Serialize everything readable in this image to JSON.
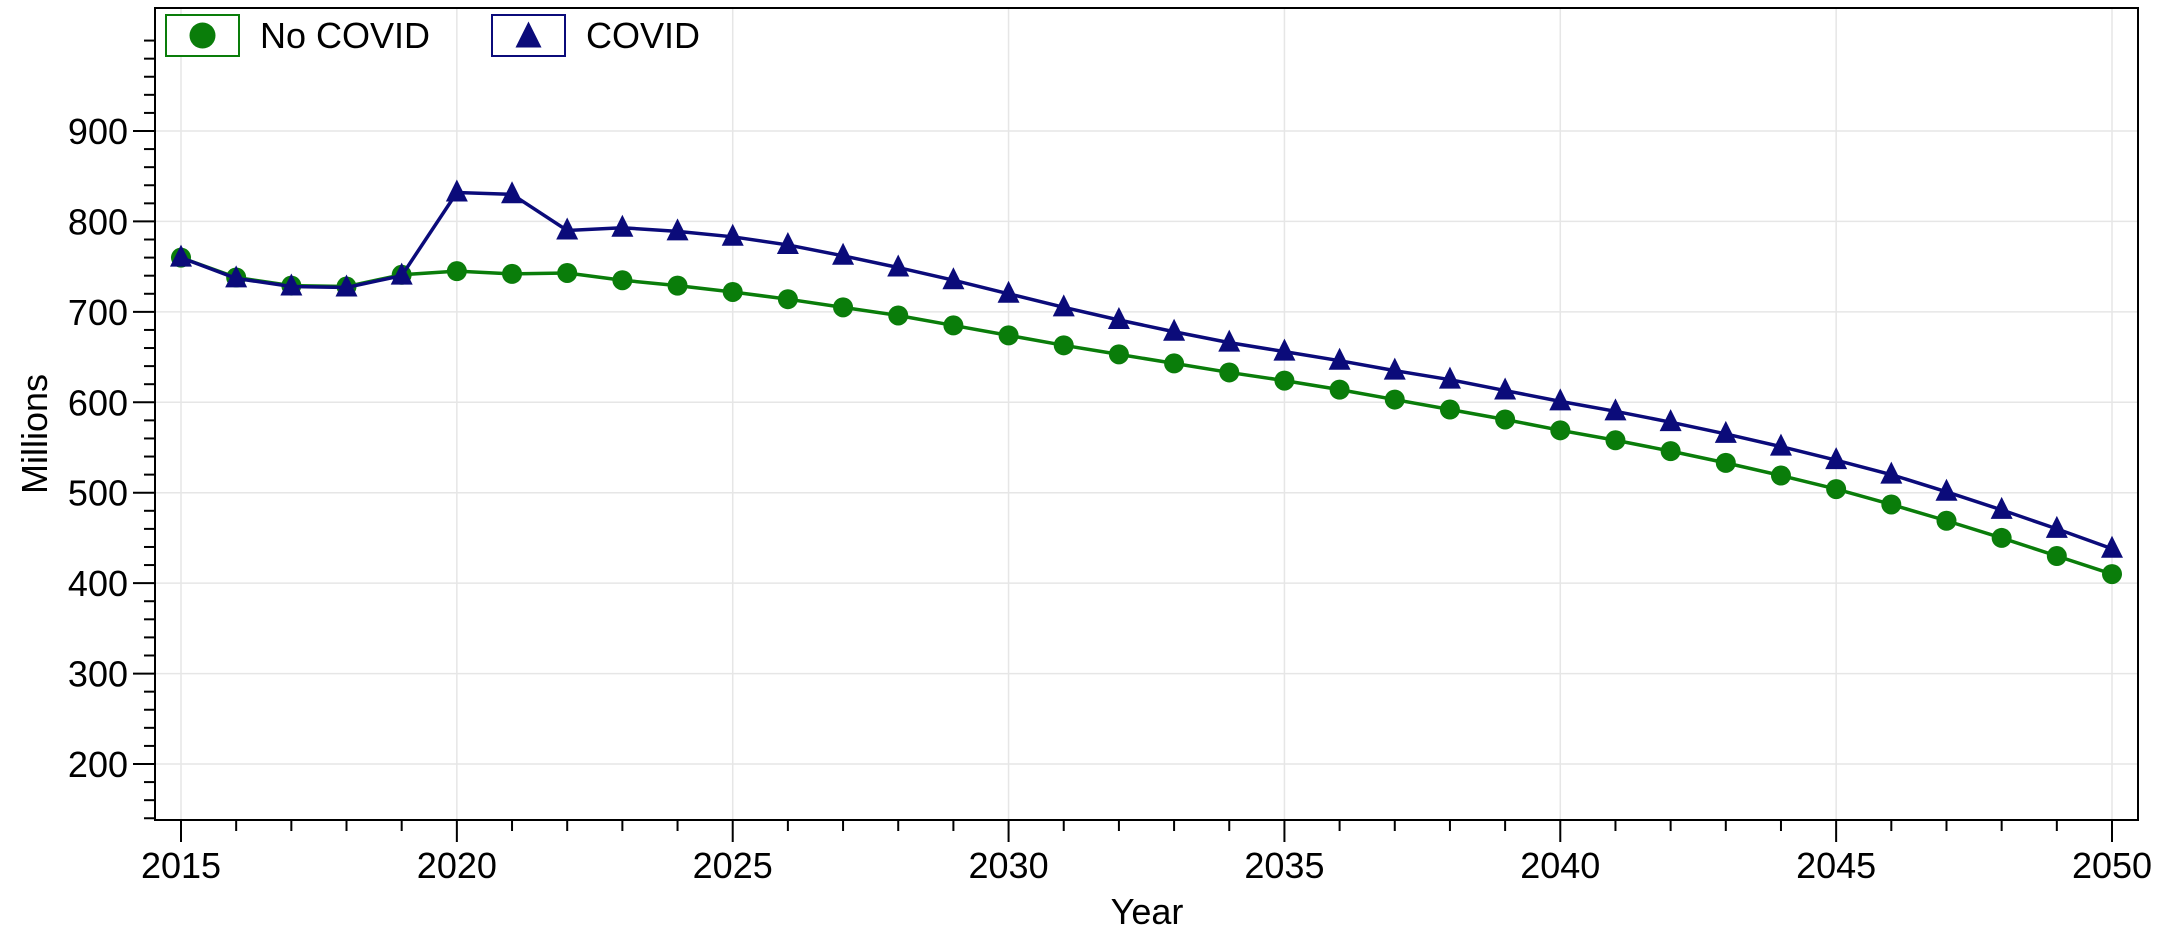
{
  "chart_data": {
    "type": "line",
    "title": "",
    "xlabel": "Year",
    "ylabel": "Millions",
    "xlim": [
      2014.5,
      2050.5
    ],
    "ylim": [
      135,
      1000
    ],
    "xticks": [
      2015,
      2020,
      2025,
      2030,
      2035,
      2040,
      2045,
      2050
    ],
    "yticks": [
      200,
      300,
      400,
      500,
      600,
      700,
      800,
      900
    ],
    "grid": true,
    "legend": "top-left",
    "x": [
      2015,
      2016,
      2017,
      2018,
      2019,
      2020,
      2021,
      2022,
      2023,
      2024,
      2025,
      2026,
      2027,
      2028,
      2029,
      2030,
      2031,
      2032,
      2033,
      2034,
      2035,
      2036,
      2037,
      2038,
      2039,
      2040,
      2041,
      2042,
      2043,
      2044,
      2045,
      2046,
      2047,
      2048,
      2049,
      2050
    ],
    "series": [
      {
        "name": "No COVID",
        "color": "#0a7d0a",
        "marker": "circle",
        "values": [
          760,
          738,
          729,
          728,
          741,
          745,
          742,
          743,
          735,
          729,
          722,
          714,
          705,
          696,
          685,
          674,
          663,
          653,
          643,
          633,
          624,
          614,
          603,
          592,
          581,
          569,
          558,
          546,
          533,
          519,
          504,
          487,
          469,
          450,
          430,
          410
        ]
      },
      {
        "name": "COVID",
        "color": "#0b0b7a",
        "marker": "triangle",
        "values": [
          760,
          737,
          728,
          727,
          740,
          832,
          830,
          790,
          793,
          789,
          783,
          774,
          762,
          749,
          735,
          720,
          705,
          691,
          678,
          666,
          656,
          646,
          635,
          625,
          613,
          601,
          590,
          578,
          565,
          551,
          536,
          520,
          501,
          481,
          460,
          438
        ]
      }
    ]
  }
}
